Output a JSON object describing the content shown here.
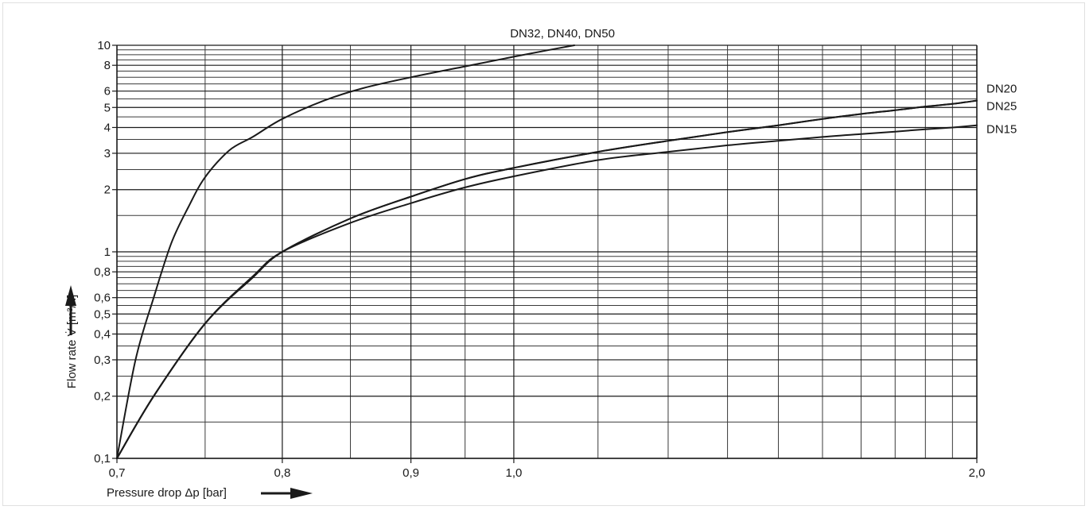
{
  "chart_data": {
    "type": "line",
    "title": "",
    "xlabel": "Pressure drop Δp [bar]",
    "ylabel": "Flow rate V̇ [m³/h]",
    "x_scale": "reciprocal",
    "y_scale": "log",
    "xlim": [
      0.7,
      2.0
    ],
    "ylim": [
      0.1,
      10
    ],
    "grid": true,
    "x_ticks": [
      {
        "value": 0.7,
        "label": "0,7"
      },
      {
        "value": 0.8,
        "label": "0,8"
      },
      {
        "value": 0.9,
        "label": "0,9"
      },
      {
        "value": 1.0,
        "label": "1,0"
      },
      {
        "value": 2.0,
        "label": "2,0"
      }
    ],
    "x_minor_grid": [
      0.75,
      0.85,
      0.95,
      1.1,
      1.2,
      1.3,
      1.4,
      1.5,
      1.6,
      1.7,
      1.8,
      1.9
    ],
    "y_ticks": [
      {
        "value": 0.1,
        "label": "0,1"
      },
      {
        "value": 0.2,
        "label": "0,2"
      },
      {
        "value": 0.3,
        "label": "0,3"
      },
      {
        "value": 0.4,
        "label": "0,4"
      },
      {
        "value": 0.5,
        "label": "0,5"
      },
      {
        "value": 0.6,
        "label": "0,6"
      },
      {
        "value": 0.8,
        "label": "0,8"
      },
      {
        "value": 1,
        "label": "1"
      },
      {
        "value": 2,
        "label": "2"
      },
      {
        "value": 3,
        "label": "3"
      },
      {
        "value": 4,
        "label": "4"
      },
      {
        "value": 5,
        "label": "5"
      },
      {
        "value": 6,
        "label": "6"
      },
      {
        "value": 8,
        "label": "8"
      },
      {
        "value": 10,
        "label": "10"
      }
    ],
    "y_minor_grid": [
      0.15,
      0.25,
      0.35,
      0.45,
      0.55,
      0.65,
      0.7,
      0.75,
      0.85,
      0.9,
      0.95,
      1.5,
      2.5,
      3.5,
      4.5,
      5.5,
      6.5,
      7,
      7.5,
      8.5,
      9,
      9.5
    ],
    "series": [
      {
        "name": "DN32, DN40, DN50",
        "points": [
          [
            0.7,
            0.1
          ],
          [
            0.71,
            0.3
          ],
          [
            0.72,
            0.6
          ],
          [
            0.73,
            1.1
          ],
          [
            0.74,
            1.65
          ],
          [
            0.75,
            2.3
          ],
          [
            0.765,
            3.1
          ],
          [
            0.78,
            3.6
          ],
          [
            0.8,
            4.4
          ],
          [
            0.83,
            5.4
          ],
          [
            0.86,
            6.2
          ],
          [
            0.9,
            7.0
          ],
          [
            0.95,
            7.9
          ],
          [
            1.0,
            8.8
          ],
          [
            1.04,
            9.5
          ],
          [
            1.07,
            10.0
          ]
        ],
        "label_position": "top"
      },
      {
        "name": "DN20",
        "points": [
          [
            0.7,
            0.1
          ],
          [
            0.72,
            0.2
          ],
          [
            0.75,
            0.45
          ],
          [
            0.78,
            0.75
          ],
          [
            0.8,
            1.0
          ],
          [
            0.85,
            1.45
          ],
          [
            0.9,
            1.85
          ],
          [
            0.95,
            2.25
          ],
          [
            1.0,
            2.55
          ],
          [
            1.1,
            3.05
          ],
          [
            1.2,
            3.45
          ],
          [
            1.3,
            3.8
          ],
          [
            1.4,
            4.1
          ],
          [
            1.5,
            4.4
          ],
          [
            1.6,
            4.65
          ],
          [
            1.7,
            4.85
          ],
          [
            1.8,
            5.05
          ],
          [
            1.9,
            5.2
          ],
          [
            2.0,
            5.4
          ]
        ],
        "label_position": "right"
      },
      {
        "name": "DN25",
        "points": [
          [
            0.7,
            0.1
          ],
          [
            0.72,
            0.2
          ],
          [
            0.75,
            0.45
          ],
          [
            0.78,
            0.75
          ],
          [
            0.8,
            1.0
          ],
          [
            0.85,
            1.45
          ],
          [
            0.9,
            1.85
          ],
          [
            0.95,
            2.25
          ],
          [
            1.0,
            2.55
          ],
          [
            1.1,
            3.05
          ],
          [
            1.2,
            3.45
          ],
          [
            1.3,
            3.8
          ],
          [
            1.4,
            4.1
          ],
          [
            1.5,
            4.4
          ],
          [
            1.6,
            4.65
          ],
          [
            1.7,
            4.85
          ],
          [
            1.8,
            5.05
          ],
          [
            1.9,
            5.2
          ],
          [
            2.0,
            5.4
          ]
        ],
        "label_position": "right"
      },
      {
        "name": "DN15",
        "points": [
          [
            0.7,
            0.1
          ],
          [
            0.72,
            0.2
          ],
          [
            0.75,
            0.45
          ],
          [
            0.78,
            0.76
          ],
          [
            0.8,
            1.0
          ],
          [
            0.85,
            1.38
          ],
          [
            0.9,
            1.72
          ],
          [
            0.95,
            2.05
          ],
          [
            1.0,
            2.32
          ],
          [
            1.1,
            2.78
          ],
          [
            1.2,
            3.05
          ],
          [
            1.3,
            3.28
          ],
          [
            1.4,
            3.45
          ],
          [
            1.5,
            3.6
          ],
          [
            1.6,
            3.72
          ],
          [
            1.7,
            3.82
          ],
          [
            1.8,
            3.92
          ],
          [
            1.9,
            4.0
          ],
          [
            2.0,
            4.1
          ]
        ],
        "label_position": "right"
      }
    ]
  }
}
